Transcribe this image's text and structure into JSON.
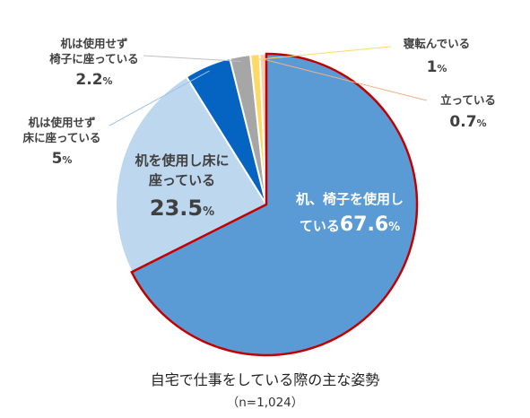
{
  "chart_data": {
    "type": "pie",
    "title": "自宅で仕事をしている際の主な姿勢",
    "subtitle": "（n=1,024）",
    "unit": "%",
    "slices": [
      {
        "name": "机、椅子を使用している",
        "value": 67.6,
        "color": "#5b9bd5",
        "value_text": "67.6",
        "highlight": true
      },
      {
        "name": "机を使用し床に座っている",
        "value": 23.5,
        "color": "#bdd7ee",
        "value_text": "23.5"
      },
      {
        "name": "机は使用せず床に座っている",
        "value": 5,
        "color": "#0563c1",
        "value_text": "5"
      },
      {
        "name": "机は使用せず椅子に座っている",
        "value": 2.2,
        "color": "#a6a6a6",
        "value_text": "2.2"
      },
      {
        "name": "寝転んでいる",
        "value": 1,
        "color": "#ffd966",
        "value_text": "1"
      },
      {
        "name": "立っている",
        "value": 0.7,
        "color": "#f8cbad",
        "value_text": "0.7"
      }
    ],
    "highlight_color": "#c00000"
  },
  "labels": {
    "s0": {
      "l1": "机、椅子を使用し",
      "l2": "ている"
    },
    "s1": {
      "l1": "机を使用し床に",
      "l2": "座っている"
    },
    "s2": {
      "l1": "机は使用せず",
      "l2": "床に座っている"
    },
    "s3": {
      "l1": "机は使用せず",
      "l2": "椅子に座っている"
    },
    "s4": {
      "l1": "寝転んでいる"
    },
    "s5": {
      "l1": "立っている"
    }
  }
}
